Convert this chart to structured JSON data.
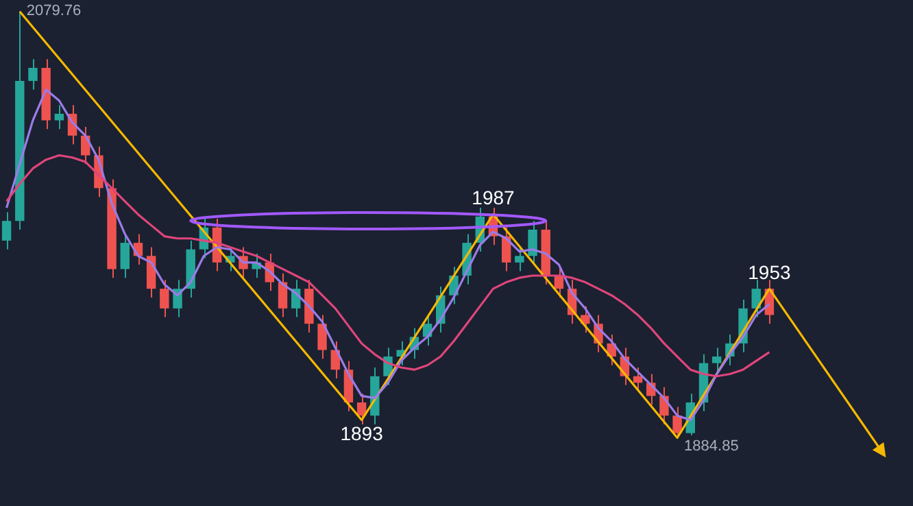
{
  "chart_data": {
    "type": "candlestick",
    "tick_labels": false,
    "categories": [
      null,
      null,
      null,
      null,
      null,
      null,
      null,
      null,
      null,
      null,
      null,
      null,
      null,
      null,
      null,
      null,
      null,
      null,
      null,
      null,
      null,
      null,
      null,
      null,
      null,
      null,
      null,
      null,
      null,
      null,
      null,
      null,
      null,
      null,
      null,
      null,
      null,
      null,
      null,
      null,
      null,
      null,
      null,
      null,
      null,
      null,
      null,
      null,
      null,
      null,
      null,
      null,
      null,
      null,
      null,
      null,
      null,
      null,
      null
    ],
    "ohlc": [
      [
        1975,
        1988,
        1971,
        1984
      ],
      [
        1984,
        2079.76,
        1980,
        2048
      ],
      [
        2048,
        2058,
        2044,
        2054
      ],
      [
        2054,
        2058,
        2026,
        2030
      ],
      [
        2030,
        2037,
        2026,
        2033
      ],
      [
        2033,
        2037,
        2019,
        2023
      ],
      [
        2023,
        2027,
        2010,
        2014
      ],
      [
        2014,
        2018,
        1995,
        1999
      ],
      [
        1999,
        2003,
        1958,
        1962
      ],
      [
        1962,
        1978,
        1958,
        1974
      ],
      [
        1974,
        1978,
        1964,
        1968
      ],
      [
        1968,
        1972,
        1949,
        1953
      ],
      [
        1953,
        1957,
        1940,
        1944
      ],
      [
        1944,
        1957,
        1940,
        1953
      ],
      [
        1953,
        1975,
        1949,
        1971
      ],
      [
        1971,
        1985,
        1967,
        1981
      ],
      [
        1981,
        1985,
        1961,
        1965
      ],
      [
        1965,
        1972,
        1961,
        1968
      ],
      [
        1968,
        1972,
        1958,
        1962
      ],
      [
        1962,
        1969,
        1958,
        1965
      ],
      [
        1965,
        1969,
        1952,
        1956
      ],
      [
        1956,
        1960,
        1940,
        1944
      ],
      [
        1944,
        1957,
        1940,
        1953
      ],
      [
        1953,
        1957,
        1933,
        1937
      ],
      [
        1937,
        1941,
        1921,
        1925
      ],
      [
        1925,
        1929,
        1912,
        1916
      ],
      [
        1916,
        1920,
        1897,
        1901
      ],
      [
        1901,
        1905,
        1891,
        1895
      ],
      [
        1895,
        1917,
        1891,
        1913
      ],
      [
        1913,
        1926,
        1909,
        1922
      ],
      [
        1922,
        1929,
        1918,
        1925
      ],
      [
        1925,
        1935,
        1921,
        1931
      ],
      [
        1931,
        1941,
        1927,
        1937
      ],
      [
        1937,
        1954,
        1933,
        1950
      ],
      [
        1950,
        1963,
        1946,
        1959
      ],
      [
        1959,
        1978,
        1955,
        1974
      ],
      [
        1974,
        1990,
        1970,
        1986
      ],
      [
        1986,
        1990,
        1973,
        1977
      ],
      [
        1977,
        1981,
        1961,
        1965
      ],
      [
        1965,
        1972,
        1961,
        1968
      ],
      [
        1968,
        1984,
        1964,
        1980
      ],
      [
        1980,
        1984,
        1955,
        1959
      ],
      [
        1959,
        1963,
        1949,
        1953
      ],
      [
        1953,
        1957,
        1937,
        1941
      ],
      [
        1941,
        1945,
        1933,
        1937
      ],
      [
        1937,
        1941,
        1924,
        1928
      ],
      [
        1928,
        1932,
        1918,
        1922
      ],
      [
        1922,
        1926,
        1909,
        1913
      ],
      [
        1913,
        1917,
        1906,
        1910
      ],
      [
        1910,
        1914,
        1900,
        1904
      ],
      [
        1904,
        1908,
        1891,
        1895
      ],
      [
        1895,
        1899,
        1884.85,
        1887
      ],
      [
        1887,
        1905,
        1886,
        1901
      ],
      [
        1901,
        1923,
        1897,
        1919
      ],
      [
        1919,
        1926,
        1915,
        1922
      ],
      [
        1922,
        1932,
        1918,
        1928
      ],
      [
        1928,
        1948,
        1924,
        1944
      ],
      [
        1944,
        1957,
        1940,
        1953
      ],
      [
        1953,
        1957,
        1937,
        1941
      ]
    ],
    "series": [
      {
        "type": "line",
        "color": "#e0457b",
        "values": [
          1993,
          2001,
          2008,
          2012,
          2014,
          2013,
          2011,
          2005,
          1999,
          1993,
          1987,
          1982,
          1977,
          1976,
          1976,
          1975,
          1974,
          1972,
          1970,
          1968,
          1965,
          1962,
          1959,
          1956,
          1950,
          1944,
          1936,
          1928,
          1923,
          1919,
          1917,
          1916,
          1918,
          1922,
          1929,
          1937,
          1945,
          1953,
          1956,
          1958,
          1959,
          1959,
          1959,
          1958,
          1956,
          1953,
          1950,
          1946,
          1941,
          1935,
          1928,
          1922,
          1916,
          1914,
          1913,
          1914,
          1916,
          1920,
          1924
        ]
      },
      {
        "type": "line",
        "color": "#9b7be8",
        "values": [
          1990,
          2010,
          2030,
          2044,
          2039,
          2029,
          2023,
          2012,
          1992,
          1978,
          1968,
          1965,
          1955,
          1950,
          1956,
          1968,
          1972,
          1971,
          1965,
          1965,
          1961,
          1955,
          1951,
          1945,
          1938,
          1926,
          1914,
          1904,
          1903,
          1910,
          1920,
          1926,
          1931,
          1939,
          1949,
          1961,
          1973,
          1979,
          1976,
          1970,
          1971,
          1969,
          1964,
          1951,
          1944,
          1935,
          1929,
          1921,
          1915,
          1909,
          1903,
          1895,
          1893,
          1902,
          1914,
          1923,
          1931,
          1941,
          1946
        ]
      },
      {
        "type": "line",
        "color": "#f5b800",
        "values": [
          null,
          2079.76,
          null,
          null,
          null,
          null,
          null,
          null,
          null,
          null,
          null,
          null,
          null,
          null,
          null,
          null,
          null,
          null,
          null,
          null,
          null,
          null,
          null,
          null,
          null,
          null,
          null,
          1893,
          null,
          null,
          null,
          null,
          null,
          null,
          null,
          null,
          null,
          1987,
          null,
          null,
          null,
          null,
          null,
          null,
          null,
          null,
          null,
          null,
          null,
          null,
          null,
          1884.85,
          null,
          null,
          null,
          null,
          null,
          null,
          1953
        ]
      }
    ],
    "annotations": [
      "2079.76",
      {
        "text": "1893",
        "y": 1893
      },
      {
        "text": "1987",
        "y": 1987
      },
      {
        "text": "1953",
        "y": 1953
      },
      "1884.85"
    ]
  }
}
